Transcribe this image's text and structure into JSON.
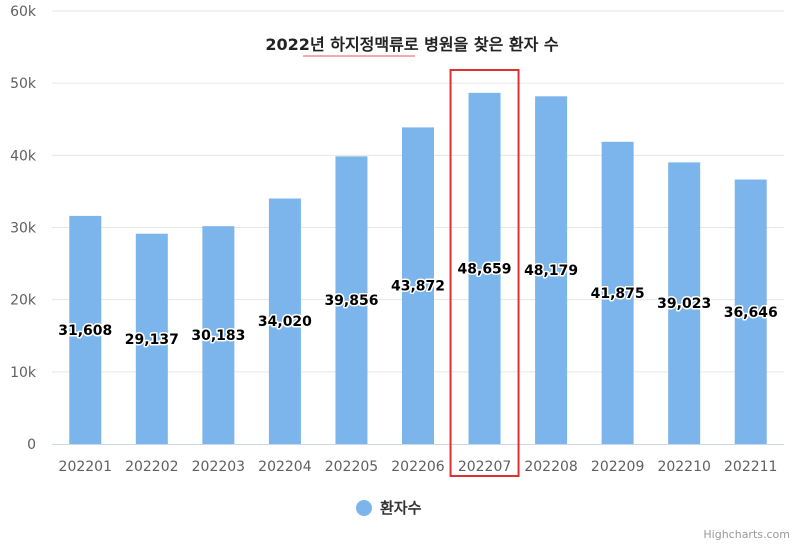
{
  "chart_data": {
    "type": "bar",
    "title": "2022년 하지정맥류로 병원을 찾은 환자 수",
    "categories": [
      "202201",
      "202202",
      "202203",
      "202204",
      "202205",
      "202206",
      "202207",
      "202208",
      "202209",
      "202210",
      "202211"
    ],
    "series": [
      {
        "name": "환자수",
        "values": [
          31608,
          29137,
          30183,
          34020,
          39856,
          43872,
          48659,
          48179,
          41875,
          39023,
          36646
        ],
        "labels": [
          "31,608",
          "29,137",
          "30,183",
          "34,020",
          "39,856",
          "43,872",
          "48,659",
          "48,179",
          "41,875",
          "39,023",
          "36,646"
        ]
      }
    ],
    "ylim": [
      0,
      60000
    ],
    "yticks": [
      0,
      10000,
      20000,
      30000,
      40000,
      50000,
      60000
    ],
    "ytick_labels": [
      "0",
      "10k",
      "20k",
      "30k",
      "40k",
      "50k",
      "60k"
    ],
    "grid": true,
    "legend": "bottom-center",
    "highlight_category": "202207"
  },
  "colors": {
    "bar": "#7cb5ec",
    "highlight_box": "#e03030",
    "grid": "#e6e6e6",
    "axis": "#ccd6eb"
  },
  "credits": "Highcharts.com"
}
